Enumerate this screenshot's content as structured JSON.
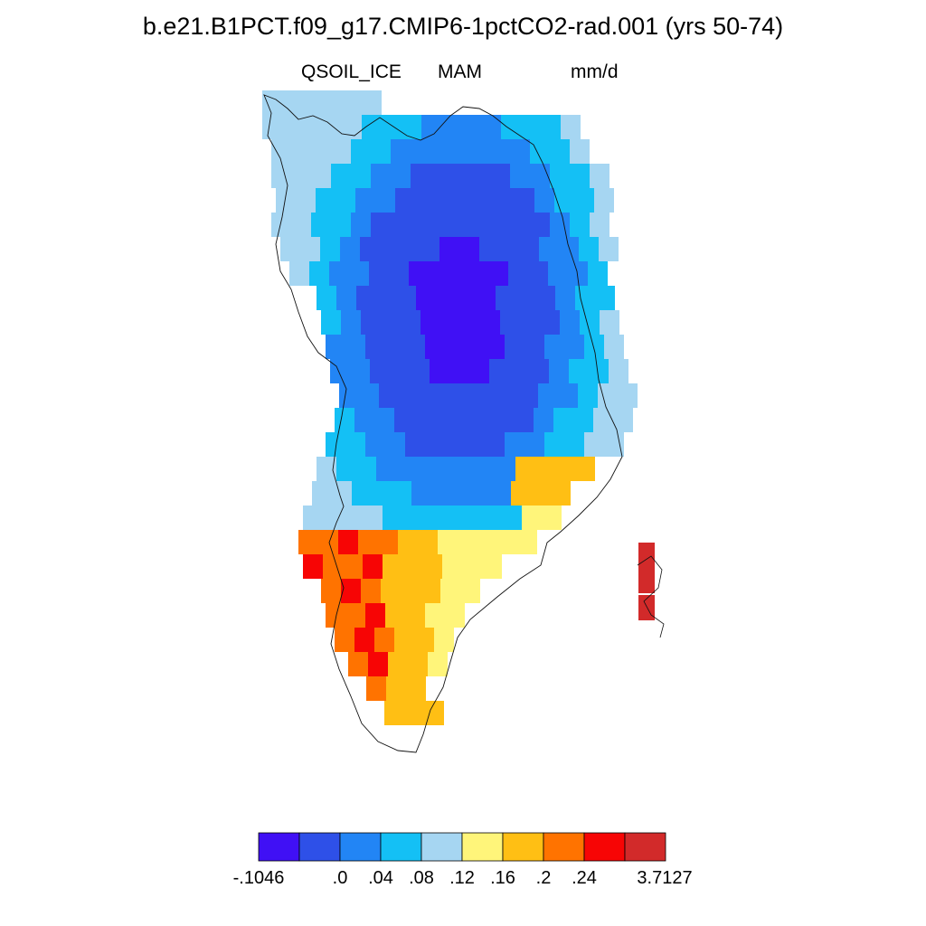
{
  "title": "b.e21.B1PCT.f09_g17.CMIP6-1pctCO2-rad.001 (yrs 50-74)",
  "variable": "QSOIL_ICE",
  "season": "MAM",
  "units": "mm/d",
  "colorbar": {
    "colors": [
      "#4010f5",
      "#2e50e8",
      "#2285f5",
      "#14c0f5",
      "#a6d6f2",
      "#fff57a",
      "#ffbf14",
      "#ff7300",
      "#f70505",
      "#d22a2a"
    ],
    "tick_labels": [
      "-.1046",
      ".0",
      ".04",
      ".08",
      ".12",
      ".16",
      ".2",
      ".24",
      "3.7127"
    ]
  }
}
